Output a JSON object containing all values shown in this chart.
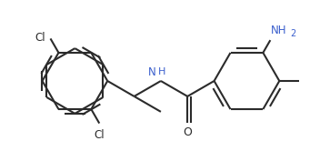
{
  "line_color": "#2b2b2b",
  "bg_color": "#ffffff",
  "text_color": "#2b2b2b",
  "nh_color": "#3a5fcd",
  "lw": 1.5,
  "r": 0.36,
  "fig_width": 3.63,
  "fig_height": 1.77,
  "dpi": 100,
  "xlim": [
    0.0,
    3.63
  ],
  "ylim": [
    0.05,
    1.72
  ]
}
